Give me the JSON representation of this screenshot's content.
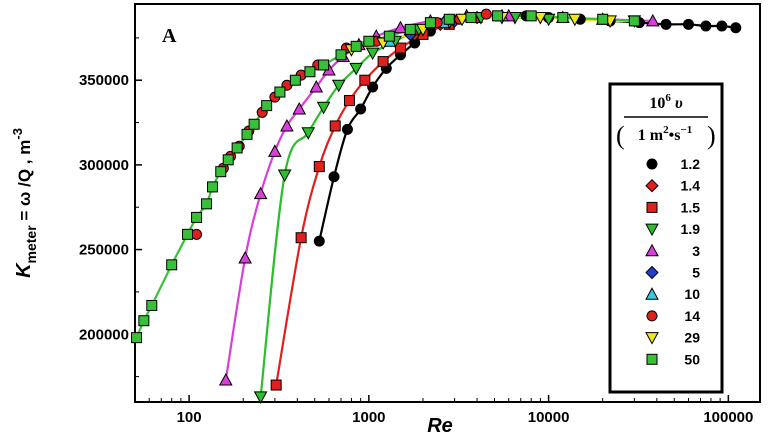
{
  "chart_data": {
    "type": "scatter",
    "panel_label": "A",
    "xlabel": "Re",
    "ylabel": {
      "symbol": "K",
      "subscript": "meter",
      "rest": " = ω /Q ,   m",
      "superscript": "-3"
    },
    "x_scale": "log",
    "xlim": [
      50,
      150000
    ],
    "ylim": [
      160000,
      395000
    ],
    "x_ticks": [
      100,
      1000,
      10000,
      100000
    ],
    "x_tick_labels": [
      "100",
      "1000",
      "10000",
      "100000"
    ],
    "y_ticks": [
      200000,
      250000,
      300000,
      350000
    ],
    "y_tick_labels": [
      "200000",
      "250000",
      "300000",
      "350000"
    ],
    "legend": {
      "placement": "right",
      "head_top": "10",
      "head_top_sup": "6",
      "head_top_rest": " υ",
      "head_bottom": "1 m",
      "head_bottom_sup": "2",
      "head_bottom_mid": "•s",
      "head_bottom_sup2": "−1"
    },
    "series": [
      {
        "name": "1.2",
        "marker": "circle",
        "color": "#000000",
        "line_color": "#000000",
        "points": [
          [
            530,
            255000
          ],
          [
            640,
            293000
          ],
          [
            760,
            321000
          ],
          [
            900,
            333000
          ],
          [
            1050,
            346000
          ],
          [
            1250,
            357000
          ],
          [
            1500,
            365000
          ],
          [
            1800,
            372000
          ],
          [
            2200,
            379000
          ],
          [
            2800,
            384000
          ],
          [
            3800,
            387000
          ],
          [
            5200,
            388000
          ],
          [
            7500,
            388000
          ],
          [
            10000,
            387000
          ],
          [
            15000,
            386000
          ],
          [
            22000,
            385000
          ],
          [
            32000,
            384000
          ],
          [
            45000,
            383000
          ],
          [
            60000,
            383000
          ],
          [
            75000,
            382000
          ],
          [
            92000,
            382000
          ],
          [
            110000,
            381000
          ]
        ]
      },
      {
        "name": "1.4",
        "marker": "diamond",
        "color": "#e0201c",
        "line_color": null,
        "points": [
          [
            1800,
            377000
          ],
          [
            2500,
            383000
          ],
          [
            4000,
            387000
          ]
        ]
      },
      {
        "name": "1.5",
        "marker": "square",
        "color": "#e0201c",
        "line_color": "#e0201c",
        "points": [
          [
            305,
            170000
          ],
          [
            420,
            257000
          ],
          [
            530,
            299000
          ],
          [
            650,
            323000
          ],
          [
            780,
            338000
          ],
          [
            950,
            350000
          ],
          [
            1200,
            361000
          ],
          [
            1500,
            369000
          ],
          [
            2000,
            377000
          ],
          [
            2800,
            383000
          ],
          [
            4000,
            387000
          ]
        ]
      },
      {
        "name": "1.9",
        "marker": "triangle-down",
        "color": "#2bbf2b",
        "line_color": "#2bbf2b",
        "points": [
          [
            250,
            163000
          ],
          [
            340,
            294000
          ],
          [
            460,
            319000
          ],
          [
            560,
            334000
          ],
          [
            680,
            347000
          ],
          [
            850,
            357000
          ],
          [
            1050,
            366000
          ],
          [
            1400,
            373000
          ],
          [
            1900,
            380000
          ],
          [
            2800,
            384000
          ],
          [
            4200,
            387000
          ],
          [
            6500,
            387000
          ],
          [
            10000,
            386000
          ]
        ]
      },
      {
        "name": "3",
        "marker": "triangle-up",
        "color": "#d83fd8",
        "line_color": "#d83fd8",
        "points": [
          [
            160,
            173000
          ],
          [
            205,
            245000
          ],
          [
            250,
            283000
          ],
          [
            300,
            308000
          ],
          [
            350,
            323000
          ],
          [
            410,
            333000
          ],
          [
            510,
            346000
          ],
          [
            600,
            356000
          ],
          [
            720,
            364000
          ],
          [
            880,
            371000
          ],
          [
            1100,
            376000
          ],
          [
            1500,
            381000
          ],
          [
            2200,
            385000
          ],
          [
            3500,
            388000
          ],
          [
            6000,
            388000
          ],
          [
            12000,
            387000
          ],
          [
            20000,
            386000
          ],
          [
            38000,
            385000
          ]
        ]
      },
      {
        "name": "5",
        "marker": "diamond",
        "color": "#1f3fd0",
        "line_color": null,
        "points": [
          [
            1700,
            377000
          ],
          [
            3000,
            385000
          ]
        ]
      },
      {
        "name": "10",
        "marker": "triangle-up",
        "color": "#39c8e0",
        "line_color": null,
        "points": [
          [
            1300,
            373000
          ],
          [
            2600,
            384000
          ],
          [
            5500,
            388000
          ]
        ]
      },
      {
        "name": "14",
        "marker": "circle",
        "color": "#e0201c",
        "line_color": null,
        "points": [
          [
            110,
            259000
          ],
          [
            135,
            287000
          ],
          [
            155,
            298000
          ],
          [
            170,
            305000
          ],
          [
            190,
            311000
          ],
          [
            215,
            320000
          ],
          [
            255,
            331000
          ],
          [
            300,
            340000
          ],
          [
            350,
            347000
          ],
          [
            420,
            353000
          ],
          [
            520,
            359000
          ],
          [
            750,
            369000
          ],
          [
            1100,
            373000
          ],
          [
            1700,
            380000
          ],
          [
            2400,
            384000
          ],
          [
            3200,
            386000
          ],
          [
            4500,
            389000
          ]
        ]
      },
      {
        "name": "29",
        "marker": "triangle-down",
        "color": "#f2e51a",
        "line_color": "#f2e51a",
        "points": [
          [
            800,
            368000
          ],
          [
            1200,
            372000
          ],
          [
            2000,
            380000
          ],
          [
            3300,
            386000
          ],
          [
            5500,
            387000
          ],
          [
            9000,
            387000
          ],
          [
            14000,
            386000
          ],
          [
            22000,
            385000
          ],
          [
            30000,
            385000
          ]
        ]
      },
      {
        "name": "50",
        "marker": "square",
        "color": "#39c039",
        "line_color": "#39c039",
        "points": [
          [
            51,
            198000
          ],
          [
            56,
            208000
          ],
          [
            62,
            217000
          ],
          [
            80,
            241000
          ],
          [
            98,
            259000
          ],
          [
            110,
            269000
          ],
          [
            125,
            277000
          ],
          [
            135,
            287000
          ],
          [
            150,
            296000
          ],
          [
            165,
            303000
          ],
          [
            185,
            310000
          ],
          [
            210,
            318000
          ],
          [
            230,
            324000
          ],
          [
            270,
            335000
          ],
          [
            320,
            343000
          ],
          [
            390,
            350000
          ],
          [
            470,
            355000
          ],
          [
            560,
            359000
          ],
          [
            700,
            365000
          ],
          [
            850,
            370000
          ],
          [
            1000,
            373000
          ],
          [
            1300,
            376000
          ],
          [
            1700,
            380000
          ],
          [
            2200,
            384000
          ],
          [
            2800,
            386000
          ],
          [
            3700,
            387000
          ],
          [
            5200,
            388000
          ],
          [
            8000,
            388000
          ],
          [
            12000,
            387000
          ],
          [
            20000,
            386000
          ],
          [
            30000,
            385000
          ]
        ]
      }
    ]
  }
}
